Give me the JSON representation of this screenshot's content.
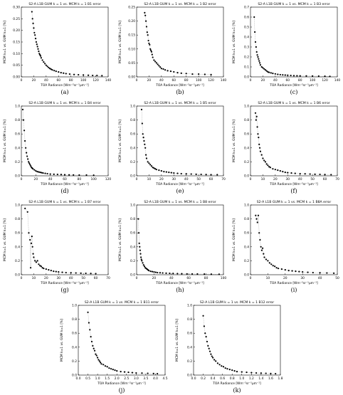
{
  "chart_data": [
    {
      "panel_label": "(a)",
      "type": "scatter",
      "title": "S2-A L1B GUM k = 1 vs. MCM k = 1 B1 error",
      "xlabel": "TOA Radiance [Wm⁻²sr⁻¹μm⁻¹]",
      "ylabel": "MCM k=1 vs. GUM k=1 [%]",
      "xlim": [
        0,
        140
      ],
      "ylim": [
        0.0,
        0.3
      ],
      "xticks": [
        "0",
        "20",
        "40",
        "60",
        "80",
        "100",
        "120",
        "140"
      ],
      "yticks": [
        "0.00",
        "0.05",
        "0.10",
        "0.15",
        "0.20",
        "0.25",
        "0.30"
      ],
      "x": [
        17,
        18,
        19,
        20,
        21,
        22,
        23,
        24,
        25,
        26,
        27,
        28,
        29,
        30,
        31,
        32,
        34,
        36,
        38,
        40,
        42,
        44,
        46,
        48,
        50,
        53,
        56,
        60,
        64,
        68,
        72,
        78,
        85,
        92,
        100,
        108,
        115,
        122,
        130
      ],
      "y": [
        0.28,
        0.25,
        0.23,
        0.21,
        0.19,
        0.18,
        0.165,
        0.15,
        0.14,
        0.13,
        0.12,
        0.11,
        0.1,
        0.095,
        0.09,
        0.082,
        0.072,
        0.064,
        0.057,
        0.05,
        0.045,
        0.04,
        0.036,
        0.033,
        0.03,
        0.027,
        0.024,
        0.021,
        0.018,
        0.016,
        0.014,
        0.012,
        0.01,
        0.009,
        0.008,
        0.007,
        0.006,
        0.006,
        0.005
      ]
    },
    {
      "panel_label": "(b)",
      "type": "scatter",
      "title": "S2-A L1B GUM k = 1 vs. MCM k = 1 B2 error",
      "xlabel": "TOA Radiance [Wm⁻²sr⁻¹μm⁻¹]",
      "ylabel": "MCM k=1 vs. GUM k=1 [%]",
      "xlim": [
        0,
        140
      ],
      "ylim": [
        0.0,
        0.25
      ],
      "xticks": [
        "0",
        "20",
        "40",
        "60",
        "80",
        "100",
        "120",
        "140"
      ],
      "yticks": [
        "0.00",
        "0.05",
        "0.10",
        "0.15",
        "0.20",
        "0.25"
      ],
      "x": [
        13,
        14,
        15,
        16,
        17,
        18,
        19,
        20,
        21,
        22,
        23,
        24,
        25,
        26,
        28,
        30,
        32,
        34,
        36,
        38,
        40,
        43,
        46,
        50,
        55,
        60,
        66,
        72,
        80,
        90,
        100,
        110,
        120
      ],
      "y": [
        0.23,
        0.22,
        0.2,
        0.18,
        0.16,
        0.15,
        0.13,
        0.12,
        0.115,
        0.1,
        0.095,
        0.09,
        0.08,
        0.07,
        0.06,
        0.055,
        0.05,
        0.045,
        0.04,
        0.035,
        0.03,
        0.028,
        0.025,
        0.022,
        0.02,
        0.018,
        0.015,
        0.013,
        0.012,
        0.01,
        0.01,
        0.009,
        0.008
      ]
    },
    {
      "panel_label": "(c)",
      "type": "scatter",
      "title": "S2-A L1B GUM k = 1 vs. MCM k = 1 B3 error",
      "xlabel": "TOA Radiance [Wm⁻²sr⁻¹μm⁻¹]",
      "ylabel": "MCM k=1 vs. GUM k=1 [%]",
      "xlim": [
        0,
        140
      ],
      "ylim": [
        0.0,
        0.7
      ],
      "xticks": [
        "0",
        "20",
        "40",
        "60",
        "80",
        "100",
        "120",
        "140"
      ],
      "yticks": [
        "0.0",
        "0.1",
        "0.2",
        "0.3",
        "0.4",
        "0.5",
        "0.6",
        "0.7"
      ],
      "x": [
        6,
        7,
        8,
        9,
        10,
        11,
        12,
        13,
        14,
        15,
        16,
        18,
        20,
        22,
        24,
        26,
        28,
        30,
        33,
        36,
        40,
        44,
        48,
        52,
        56,
        60,
        65,
        70,
        75,
        80,
        90,
        100,
        110,
        120,
        128
      ],
      "y": [
        0.6,
        0.45,
        0.35,
        0.3,
        0.25,
        0.22,
        0.2,
        0.18,
        0.16,
        0.14,
        0.12,
        0.1,
        0.09,
        0.08,
        0.07,
        0.06,
        0.05,
        0.045,
        0.04,
        0.035,
        0.03,
        0.025,
        0.022,
        0.02,
        0.018,
        0.016,
        0.014,
        0.012,
        0.011,
        0.01,
        0.009,
        0.008,
        0.007,
        0.006,
        0.005
      ]
    },
    {
      "panel_label": "(d)",
      "type": "scatter",
      "title": "S2-A L1B GUM k = 1 vs. MCM k = 1 B4 error",
      "xlabel": "TOA Radiance [Wm⁻²sr⁻¹μm⁻¹]",
      "ylabel": "MCM k=1 vs. GUM k=1 [%]",
      "xlim": [
        0,
        120
      ],
      "ylim": [
        0.0,
        1.0
      ],
      "xticks": [
        "0",
        "20",
        "40",
        "60",
        "80",
        "100",
        "120"
      ],
      "yticks": [
        "0.0",
        "0.2",
        "0.4",
        "0.6",
        "0.8",
        "1.0"
      ],
      "x": [
        2,
        3,
        4,
        5,
        6,
        7,
        8,
        9,
        10,
        11,
        12,
        13,
        14,
        15,
        16,
        18,
        20,
        22,
        24,
        26,
        28,
        30,
        33,
        36,
        40,
        45,
        50,
        55,
        60,
        66,
        72,
        80,
        90,
        100
      ],
      "y": [
        0.95,
        0.8,
        0.65,
        0.5,
        0.4,
        0.33,
        0.28,
        0.24,
        0.2,
        0.18,
        0.16,
        0.14,
        0.12,
        0.11,
        0.1,
        0.085,
        0.07,
        0.06,
        0.055,
        0.05,
        0.045,
        0.04,
        0.035,
        0.03,
        0.025,
        0.022,
        0.02,
        0.018,
        0.015,
        0.013,
        0.012,
        0.01,
        0.01,
        0.008
      ]
    },
    {
      "panel_label": "(e)",
      "type": "scatter",
      "title": "S2-A L1B GUM k = 1 vs. MCM k = 1 B5 error",
      "xlabel": "TOA Radiance [Wm⁻²sr⁻¹μm⁻¹]",
      "ylabel": "MCM k=1 vs. GUM k=1 [%]",
      "xlim": [
        0,
        70
      ],
      "ylim": [
        0.0,
        1.0
      ],
      "xticks": [
        "0",
        "10",
        "20",
        "30",
        "40",
        "50",
        "60",
        "70"
      ],
      "yticks": [
        "0.0",
        "0.2",
        "0.4",
        "0.6",
        "0.8",
        "1.0"
      ],
      "x": [
        4,
        4.5,
        5,
        5.5,
        6,
        6.5,
        7,
        7.5,
        8,
        9,
        10,
        11,
        12,
        13,
        14,
        15,
        16,
        18,
        20,
        22,
        24,
        26,
        28,
        30,
        33,
        36,
        40,
        44,
        48,
        52,
        56,
        60,
        65
      ],
      "y": [
        0.95,
        0.75,
        0.6,
        0.55,
        0.5,
        0.45,
        0.4,
        0.3,
        0.25,
        0.2,
        0.18,
        0.16,
        0.14,
        0.12,
        0.11,
        0.1,
        0.09,
        0.08,
        0.07,
        0.06,
        0.055,
        0.05,
        0.045,
        0.04,
        0.035,
        0.03,
        0.028,
        0.025,
        0.022,
        0.02,
        0.018,
        0.016,
        0.015
      ]
    },
    {
      "panel_label": "(f)",
      "type": "scatter",
      "title": "S2-A L1B GUM k = 1 vs. MCM k = 1 B6 error",
      "xlabel": "TOA Radiance [Wm⁻²sr⁻¹μm⁻¹]",
      "ylabel": "MCM k=1 vs. GUM k=1 [%]",
      "xlim": [
        0,
        70
      ],
      "ylim": [
        0.0,
        1.0
      ],
      "xticks": [
        "0",
        "10",
        "20",
        "30",
        "40",
        "50",
        "60",
        "70"
      ],
      "yticks": [
        "0.0",
        "0.2",
        "0.4",
        "0.6",
        "0.8",
        "1.0"
      ],
      "x": [
        4,
        4.5,
        5,
        5.5,
        6,
        6.5,
        7,
        7.5,
        8,
        9,
        10,
        11,
        12,
        13,
        14,
        15,
        16,
        18,
        20,
        22,
        24,
        26,
        28,
        30,
        33,
        36,
        40,
        44,
        48,
        52,
        56,
        60,
        65
      ],
      "y": [
        0.9,
        0.8,
        0.85,
        0.7,
        0.6,
        0.55,
        0.45,
        0.4,
        0.35,
        0.3,
        0.25,
        0.22,
        0.2,
        0.17,
        0.15,
        0.13,
        0.12,
        0.1,
        0.09,
        0.08,
        0.07,
        0.06,
        0.05,
        0.045,
        0.04,
        0.035,
        0.03,
        0.028,
        0.025,
        0.022,
        0.02,
        0.018,
        0.016
      ]
    },
    {
      "panel_label": "(g)",
      "type": "scatter",
      "title": "S2-A L1B GUM k = 1 vs. MCM k = 1 B7 error",
      "xlabel": "TOA Radiance [Wm⁻²sr⁻¹μm⁻¹]",
      "ylabel": "MCM k=1 vs. GUM k=1 [%]",
      "xlim": [
        0,
        70
      ],
      "ylim": [
        0.0,
        1.0
      ],
      "xticks": [
        "0",
        "10",
        "20",
        "30",
        "40",
        "50",
        "60",
        "70"
      ],
      "yticks": [
        "0.0",
        "0.2",
        "0.4",
        "0.6",
        "0.8",
        "1.0"
      ],
      "x": [
        3,
        5,
        6,
        7,
        7.5,
        8,
        8.5,
        9,
        9.5,
        10,
        11,
        12,
        13,
        14,
        15,
        16,
        17,
        18,
        20,
        22,
        24,
        26,
        28,
        30,
        33,
        36,
        40,
        44,
        48,
        52,
        56,
        60
      ],
      "y": [
        0.95,
        0.9,
        0.6,
        0.5,
        0.1,
        0.45,
        0.55,
        0.4,
        0.3,
        0.25,
        0.2,
        0.18,
        0.2,
        0.15,
        0.13,
        0.12,
        0.1,
        0.09,
        0.08,
        0.07,
        0.06,
        0.05,
        0.045,
        0.04,
        0.035,
        0.03,
        0.028,
        0.025,
        0.022,
        0.02,
        0.018,
        0.016
      ]
    },
    {
      "panel_label": "(h)",
      "type": "scatter",
      "title": "S2-A L1B GUM k = 1 vs. MCM k = 1 B8 error",
      "xlabel": "TOA Radiance [Wm⁻²sr⁻¹μm⁻¹]",
      "ylabel": "MCM k=1 vs. GUM k=1 [%]",
      "xlim": [
        0,
        100
      ],
      "ylim": [
        0.0,
        1.0
      ],
      "xticks": [
        "0",
        "20",
        "40",
        "60",
        "80",
        "100"
      ],
      "yticks": [
        "0.0",
        "0.2",
        "0.4",
        "0.6",
        "0.8",
        "1.0"
      ],
      "x": [
        2,
        2.5,
        3,
        3.5,
        4,
        4.5,
        5,
        5.5,
        6,
        7,
        8,
        9,
        10,
        11,
        12,
        13,
        14,
        16,
        18,
        20,
        22,
        24,
        27,
        30,
        34,
        38,
        42,
        47,
        52,
        58,
        64,
        70,
        78,
        86,
        95
      ],
      "y": [
        0.8,
        0.6,
        0.45,
        0.4,
        0.35,
        0.3,
        0.25,
        0.22,
        0.2,
        0.17,
        0.14,
        0.12,
        0.1,
        0.09,
        0.08,
        0.07,
        0.06,
        0.05,
        0.045,
        0.04,
        0.035,
        0.03,
        0.028,
        0.025,
        0.022,
        0.02,
        0.018,
        0.016,
        0.014,
        0.012,
        0.011,
        0.01,
        0.009,
        0.008,
        0.007
      ]
    },
    {
      "panel_label": "(i)",
      "type": "scatter",
      "title": "S2-A L1B GUM k = 1 vs. MCM k = 1 B8A error",
      "xlabel": "TOA Radiance [Wm⁻²sr⁻¹μm⁻¹]",
      "ylabel": "MCM k=1 vs. GUM k=1 [%]",
      "xlim": [
        0,
        50
      ],
      "ylim": [
        0.0,
        1.0
      ],
      "xticks": [
        "0",
        "10",
        "20",
        "30",
        "40",
        "50"
      ],
      "yticks": [
        "0.0",
        "0.2",
        "0.4",
        "0.6",
        "0.8",
        "1.0"
      ],
      "x": [
        3,
        3.5,
        4,
        4.5,
        5,
        5.5,
        6,
        6.5,
        7,
        7.5,
        8,
        9,
        10,
        11,
        12,
        13,
        14,
        15,
        16,
        18,
        20,
        22,
        24,
        26,
        28,
        30,
        33,
        36,
        40,
        44,
        48
      ],
      "y": [
        0.85,
        0.8,
        0.75,
        0.85,
        0.6,
        0.5,
        0.4,
        0.35,
        0.38,
        0.3,
        0.25,
        0.22,
        0.2,
        0.17,
        0.15,
        0.13,
        0.12,
        0.1,
        0.09,
        0.08,
        0.07,
        0.06,
        0.055,
        0.05,
        0.045,
        0.04,
        0.035,
        0.03,
        0.028,
        0.025,
        0.022
      ]
    },
    {
      "panel_label": "(j)",
      "type": "scatter",
      "title": "S2-A L1B GUM k = 1 vs. MCM k = 1 B11 error",
      "xlabel": "TOA Radiance [Wm⁻²sr⁻¹μm⁻¹]",
      "ylabel": "MCM k=1 vs. GUM k=1 [%]",
      "xlim": [
        0.0,
        4.5
      ],
      "ylim": [
        0.0,
        1.0
      ],
      "xticks": [
        "0.0",
        "0.5",
        "1.0",
        "1.5",
        "2.0",
        "2.5",
        "3.0",
        "3.5",
        "4.0",
        "4.5"
      ],
      "yticks": [
        "0.0",
        "0.2",
        "0.4",
        "0.6",
        "0.8",
        "1.0"
      ],
      "x": [
        0.5,
        0.55,
        0.6,
        0.65,
        0.7,
        0.75,
        0.8,
        0.85,
        0.9,
        0.95,
        1.0,
        1.05,
        1.1,
        1.15,
        1.2,
        1.3,
        1.4,
        1.5,
        1.6,
        1.7,
        1.8,
        1.9,
        2.0,
        2.2,
        2.4,
        2.6,
        2.8,
        3.0,
        3.3,
        3.6,
        3.9,
        4.1
      ],
      "y": [
        0.9,
        0.75,
        0.65,
        0.55,
        0.48,
        0.42,
        0.38,
        0.35,
        0.3,
        0.28,
        0.25,
        0.22,
        0.2,
        0.18,
        0.16,
        0.15,
        0.13,
        0.12,
        0.1,
        0.09,
        0.08,
        0.07,
        0.06,
        0.05,
        0.045,
        0.04,
        0.035,
        0.03,
        0.028,
        0.025,
        0.022,
        0.02
      ]
    },
    {
      "panel_label": "(k)",
      "type": "scatter",
      "title": "S2-A L1B GUM k = 1 vs. MCM k = 1 B12 error",
      "xlabel": "TOA Radiance [Wm⁻²sr⁻¹μm⁻¹]",
      "ylabel": "MCM k=1 vs. GUM k=1 [%]",
      "xlim": [
        0.0,
        1.8
      ],
      "ylim": [
        0.0,
        1.0
      ],
      "xticks": [
        "0.0",
        "0.2",
        "0.4",
        "0.6",
        "0.8",
        "1.0",
        "1.2",
        "1.4",
        "1.6",
        "1.8"
      ],
      "yticks": [
        "0.0",
        "0.2",
        "0.4",
        "0.6",
        "0.8",
        "1.0"
      ],
      "x": [
        0.2,
        0.22,
        0.24,
        0.26,
        0.28,
        0.3,
        0.32,
        0.34,
        0.36,
        0.38,
        0.4,
        0.43,
        0.46,
        0.5,
        0.54,
        0.58,
        0.62,
        0.66,
        0.7,
        0.75,
        0.8,
        0.85,
        0.9,
        1.0,
        1.1,
        1.2,
        1.3,
        1.4,
        1.5,
        1.6,
        1.7
      ],
      "y": [
        0.85,
        0.7,
        0.6,
        0.55,
        0.48,
        0.42,
        0.38,
        0.34,
        0.3,
        0.27,
        0.25,
        0.22,
        0.2,
        0.17,
        0.15,
        0.13,
        0.12,
        0.1,
        0.09,
        0.08,
        0.07,
        0.06,
        0.05,
        0.045,
        0.04,
        0.035,
        0.03,
        0.028,
        0.025,
        0.022,
        0.02
      ]
    }
  ]
}
